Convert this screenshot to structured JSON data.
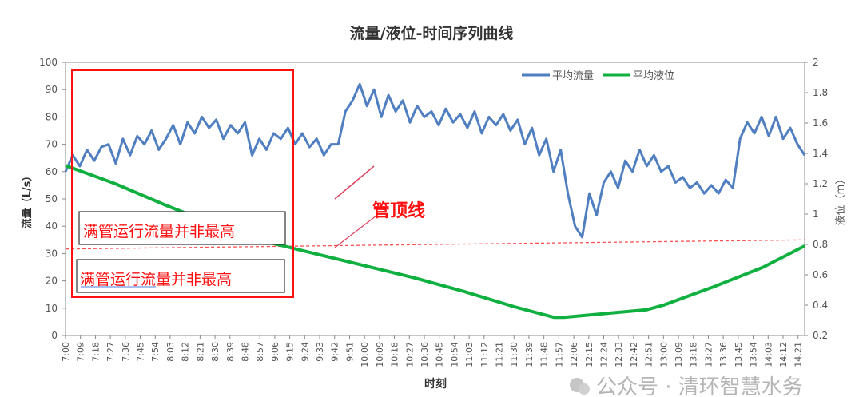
{
  "chart_data": {
    "type": "line",
    "title": "流量/液位-时间序列曲线",
    "xlabel": "时刻",
    "ylabel_left": "流量（L/s）",
    "ylabel_right": "液位（m）",
    "ylim_left": [
      0,
      100
    ],
    "ylim_right": [
      0.2,
      2
    ],
    "yticks_left": [
      "0",
      "10",
      "20",
      "30",
      "40",
      "50",
      "60",
      "70",
      "80",
      "90",
      "100"
    ],
    "yticks_right": [
      "0.2",
      "0.4",
      "0.6",
      "0.8",
      "1",
      "1.2",
      "1.4",
      "1.6",
      "1.8",
      "2"
    ],
    "x_range_minutes": [
      420,
      865
    ],
    "xticks": [
      "7:00",
      "7:09",
      "7:18",
      "7:27",
      "7:36",
      "7:45",
      "7:54",
      "8:03",
      "8:12",
      "8:21",
      "8:30",
      "8:39",
      "8:48",
      "8:57",
      "9:06",
      "9:15",
      "9:24",
      "9:33",
      "9:42",
      "9:51",
      "10:00",
      "10:09",
      "10:18",
      "10:27",
      "10:36",
      "10:45",
      "10:54",
      "11:03",
      "11:12",
      "11:21",
      "11:30",
      "11:39",
      "11:48",
      "11:57",
      "12:06",
      "12:15",
      "12:24",
      "12:33",
      "12:42",
      "12:51",
      "13:00",
      "13:09",
      "13:18",
      "13:27",
      "13:36",
      "13:45",
      "13:54",
      "14:03",
      "14:12",
      "14:21"
    ],
    "legend_position": "top-right",
    "series": [
      {
        "name": "平均流量",
        "axis": "left",
        "color": "#4f7fc0",
        "values": [
          60,
          66,
          62,
          68,
          64,
          69,
          70,
          63,
          72,
          66,
          73,
          70,
          75,
          68,
          72,
          77,
          70,
          78,
          74,
          80,
          76,
          79,
          72,
          77,
          74,
          78,
          66,
          72,
          68,
          74,
          72,
          76,
          70,
          74,
          69,
          72,
          66,
          70,
          70,
          82,
          86,
          92,
          84,
          90,
          80,
          88,
          82,
          86,
          78,
          84,
          80,
          82,
          77,
          83,
          78,
          81,
          76,
          82,
          74,
          80,
          77,
          81,
          75,
          79,
          70,
          76,
          66,
          72,
          60,
          68,
          52,
          40,
          36,
          52,
          44,
          56,
          60,
          54,
          64,
          60,
          68,
          62,
          66,
          60,
          62,
          56,
          58,
          54,
          56,
          52,
          55,
          52,
          57,
          54,
          72,
          78,
          74,
          80,
          73,
          80,
          72,
          76,
          70,
          66
        ]
      },
      {
        "name": "平均液位",
        "axis": "right",
        "color": "#10b040",
        "points": [
          [
            420,
            1.32
          ],
          [
            450,
            1.2
          ],
          [
            480,
            1.06
          ],
          [
            510,
            0.93
          ],
          [
            540,
            0.82
          ],
          [
            570,
            0.74
          ],
          [
            600,
            0.66
          ],
          [
            630,
            0.58
          ],
          [
            660,
            0.49
          ],
          [
            690,
            0.39
          ],
          [
            714,
            0.32
          ],
          [
            720,
            0.32
          ],
          [
            750,
            0.35
          ],
          [
            770,
            0.37
          ],
          [
            780,
            0.4
          ],
          [
            810,
            0.52
          ],
          [
            840,
            0.65
          ],
          [
            865,
            0.79
          ]
        ]
      }
    ],
    "pipe_top_line": {
      "label": "管顶线",
      "level": [
        0.77,
        0.83
      ],
      "color": "#ff4040"
    },
    "annotations": [
      "满管运行流量并非最高",
      "满管运行流量并非最高"
    ]
  },
  "watermark": "公众号 · 清环智慧水务"
}
